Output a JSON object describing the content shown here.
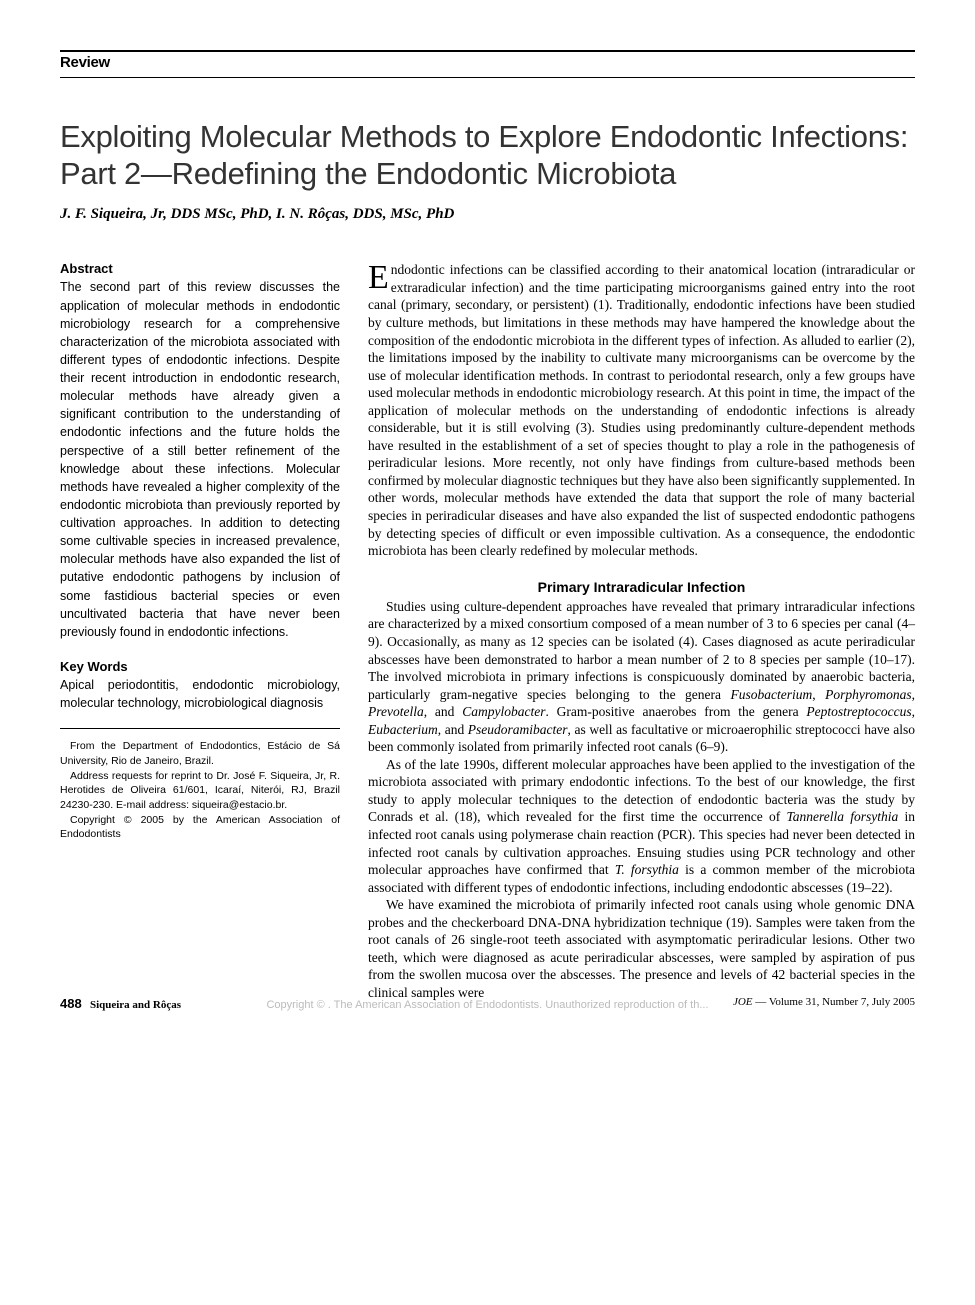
{
  "header": {
    "section_label": "Review"
  },
  "article": {
    "title": "Exploiting Molecular Methods to Explore Endodontic Infections: Part 2—Redefining the Endodontic Microbiota",
    "authors": "J. F. Siqueira, Jr, DDS MSc, PhD, I. N. Rôças, DDS, MSc, PhD"
  },
  "abstract": {
    "heading": "Abstract",
    "text": "The second part of this review discusses the application of molecular methods in endodontic microbiology research for a comprehensive characterization of the microbiota associated with different types of endodontic infections. Despite their recent introduction in endodontic research, molecular methods have already given a significant contribution to the understanding of endodontic infections and the future holds the perspective of a still better refinement of the knowledge about these infections. Molecular methods have revealed a higher complexity of the endodontic microbiota than previously reported by cultivation approaches. In addition to detecting some cultivable species in increased prevalence, molecular methods have also expanded the list of putative endodontic pathogens by inclusion of some fastidious bacterial species or even uncultivated bacteria that have never been previously found in endodontic infections."
  },
  "keywords": {
    "heading": "Key Words",
    "text": "Apical periodontitis, endodontic microbiology, molecular technology, microbiological diagnosis"
  },
  "affiliation": {
    "line1": "From the Department of Endodontics, Estácio de Sá University, Rio de Janeiro, Brazil.",
    "line2": "Address requests for reprint to Dr. José F. Siqueira, Jr, R. Herotides de Oliveira 61/601, Icaraí, Niterói, RJ, Brazil 24230-230. E-mail address: siqueira@estacio.br.",
    "line3": "Copyright © 2005 by the American Association of Endodontists"
  },
  "body": {
    "intro_first_word_rest": "ndodontic infections can be classified according to their anatomical location (intraradicular or extraradicular infection) and the time participating microorganisms gained entry into the root canal (primary, secondary, or persistent) (1). Traditionally, endodontic infections have been studied by culture methods, but limitations in these methods may have hampered the knowledge about the composition of the endodontic microbiota in the different types of infection. As alluded to earlier (2), the limitations imposed by the inability to cultivate many microorganisms can be overcome by the use of molecular identification methods. In contrast to periodontal research, only a few groups have used molecular methods in endodontic microbiology research. At this point in time, the impact of the application of molecular methods on the understanding of endodontic infections is already considerable, but it is still evolving (3). Studies using predominantly culture-dependent methods have resulted in the establishment of a set of species thought to play a role in the pathogenesis of periradicular lesions. More recently, not only have findings from culture-based methods been confirmed by molecular diagnostic techniques but they have also been significantly supplemented. In other words, molecular methods have extended the data that support the role of many bacterial species in periradicular diseases and have also expanded the list of suspected endodontic pathogens by detecting species of difficult or even impossible cultivation. As a consequence, the endodontic microbiota has been clearly redefined by molecular methods.",
    "section1_heading": "Primary Intraradicular Infection",
    "section1_p1_a": "Studies using culture-dependent approaches have revealed that primary intraradicular infections are characterized by a mixed consortium composed of a mean number of 3 to 6 species per canal (4–9). Occasionally, as many as 12 species can be isolated (4). Cases diagnosed as acute periradicular abscesses have been demonstrated to harbor a mean number of 2 to 8 species per sample (10–17). The involved microbiota in primary infections is conspicuously dominated by anaerobic bacteria, particularly gram-negative species belonging to the genera ",
    "section1_p1_b": ". Gram-positive anaerobes from the genera ",
    "section1_p1_c": ", as well as facultative or microaerophilic streptococci have also been commonly isolated from primarily infected root canals (6–9).",
    "genera1": "Fusobacterium",
    "genera2": "Porphyromonas",
    "genera3": "Prevotella",
    "genera4": "Campylobacter",
    "genera5": "Peptostreptococcus",
    "genera6": "Eubacterium",
    "genera7": "Pseudoramibacter",
    "section1_p2_a": "As of the late 1990s, different molecular approaches have been applied to the investigation of the microbiota associated with primary endodontic infections. To the best of our knowledge, the first study to apply molecular techniques to the detection of endodontic bacteria was the study by Conrads et al. (18), which revealed for the first time the occurrence of ",
    "tannerella": "Tannerella forsythia",
    "section1_p2_b": " in infected root canals using polymerase chain reaction (PCR). This species had never been detected in infected root canals by cultivation approaches. Ensuing studies using PCR technology and other molecular approaches have confirmed that ",
    "tforsythia": "T. forsythia",
    "section1_p2_c": " is a common member of the microbiota associated with different types of endodontic infections, including endodontic abscesses (19–22).",
    "section1_p3": "We have examined the microbiota of primarily infected root canals using whole genomic DNA probes and the checkerboard DNA-DNA hybridization technique (19). Samples were taken from the root canals of 26 single-root teeth associated with asymptomatic periradicular lesions. Other two teeth, which were diagnosed as acute periradicular abscesses, were sampled by aspiration of pus from the swollen mucosa over the abscesses. The presence and levels of 42 bacterial species in the clinical samples were"
  },
  "footer": {
    "page_number": "488",
    "left_text": "Siqueira and Rôças",
    "right_journal": "JOE",
    "right_text": " — Volume 31, Number 7, July 2005"
  },
  "watermark": "Copyright © . The American Association of Endodontists. Unauthorized reproduction of th..."
}
